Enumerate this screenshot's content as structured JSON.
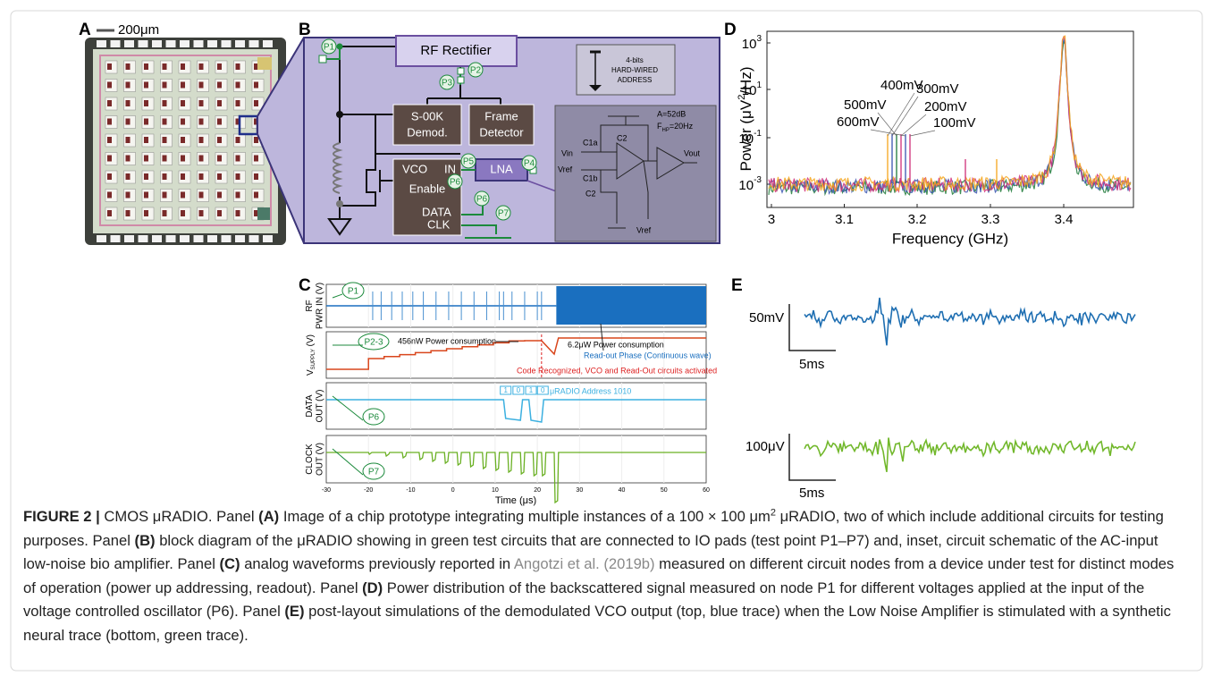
{
  "panel_a": {
    "label": "A",
    "scale_bar": "200μm"
  },
  "panel_b": {
    "label": "B",
    "rf_rectifier": "RF Rectifier",
    "demod": [
      "S-00K",
      "Demod."
    ],
    "frame_detector": [
      "Frame",
      "Detector"
    ],
    "vco": "VCO",
    "vco_in": "IN",
    "vco_enable": "Enable",
    "vco_data": "DATA",
    "vco_clk": "CLK",
    "lna": "LNA",
    "address": [
      "4-bits",
      "HARD-WIRED",
      "ADDRESS"
    ],
    "test_points": [
      "P1",
      "P2",
      "P3",
      "P5",
      "P6",
      "P4",
      "P6",
      "P7"
    ],
    "amp": {
      "gain": "A=52dB",
      "fhp": "F",
      "fhp_sub": "HP",
      "fhp_val": "=20Hz",
      "vin": "Vin",
      "vref": "Vref",
      "vout": "Vout",
      "vref_bottom": "Vref",
      "c1a": "C1a",
      "c1b": "C1b",
      "c2a": "C2",
      "c2b": "C2"
    }
  },
  "panel_c": {
    "label": "C",
    "ylabels": [
      [
        "RF",
        "PWR IN (V)"
      ],
      [
        "V",
        "SUPPLY",
        " (V)"
      ],
      [
        "DATA",
        "OUT (V)"
      ],
      [
        "CLOCK",
        "OUT (V)"
      ]
    ],
    "test_points": [
      "P1",
      "P2-3",
      "P6",
      "P7"
    ],
    "annotations": {
      "low_power": "456nW Power consumption",
      "high_power": "6.2μW Power consumption",
      "readout": "Read-out Phase (Continuous wave)",
      "code": "Code Recognized, VCO and Read-Out circuits activated",
      "address": "μRADIO Address 1010"
    },
    "bits": [
      "1",
      "0",
      "1",
      "0"
    ],
    "xticks": [
      "-30",
      "-20",
      "-10",
      "0",
      "10",
      "20",
      "30",
      "40",
      "50",
      "60"
    ],
    "xlabel": "Time (μs)"
  },
  "panel_d": {
    "label": "D",
    "ylabel": [
      "Power (μV",
      "2",
      "/Hz)"
    ],
    "xlabel": "Frequency (GHz)",
    "xticks": [
      "3",
      "3.1",
      "3.2",
      "3.3",
      "3.4"
    ],
    "yticks": [
      {
        "base": "10",
        "exp": "3"
      },
      {
        "base": "10",
        "exp": "1"
      },
      {
        "base": "10",
        "exp": "-1"
      },
      {
        "base": "10",
        "exp": "-3"
      }
    ],
    "voltages": [
      "400mV",
      "300mV",
      "500mV",
      "200mV",
      "600mV",
      "100mV"
    ]
  },
  "panel_e": {
    "label": "E",
    "top_scale": "50mV",
    "top_time": "5ms",
    "bottom_scale": "100μV",
    "bottom_time": "5ms"
  },
  "caption": {
    "parts": [
      "FIGURE 2 |",
      " CMOS μRADIO. Panel ",
      "(A)",
      " Image of a chip prototype integrating multiple instances of a 100 × 100 μm",
      "2",
      " μRADIO, two of which include additional circuits for testing purposes. Panel ",
      "(B)",
      " block diagram of the μRADIO showing in green test circuits that are connected to IO pads (test point P1–P7) and, inset, circuit schematic of the AC-input low-noise bio amplifier. Panel ",
      "(C)",
      " analog waveforms previously reported in ",
      "Angotzi et al. (2019b)",
      " measured on different circuit nodes from a device under test for distinct modes of operation (power up addressing, readout). Panel ",
      "(D)",
      " Power distribution of the backscattered signal measured on node P1 for different voltages applied at the input of the voltage controlled oscillator (P6). Panel ",
      "(E)",
      " post-layout simulations of the demodulated VCO output (top, blue trace) when the Low Noise Amplifier is stimulated with a synthetic neural trace (bottom, green trace)."
    ]
  }
}
